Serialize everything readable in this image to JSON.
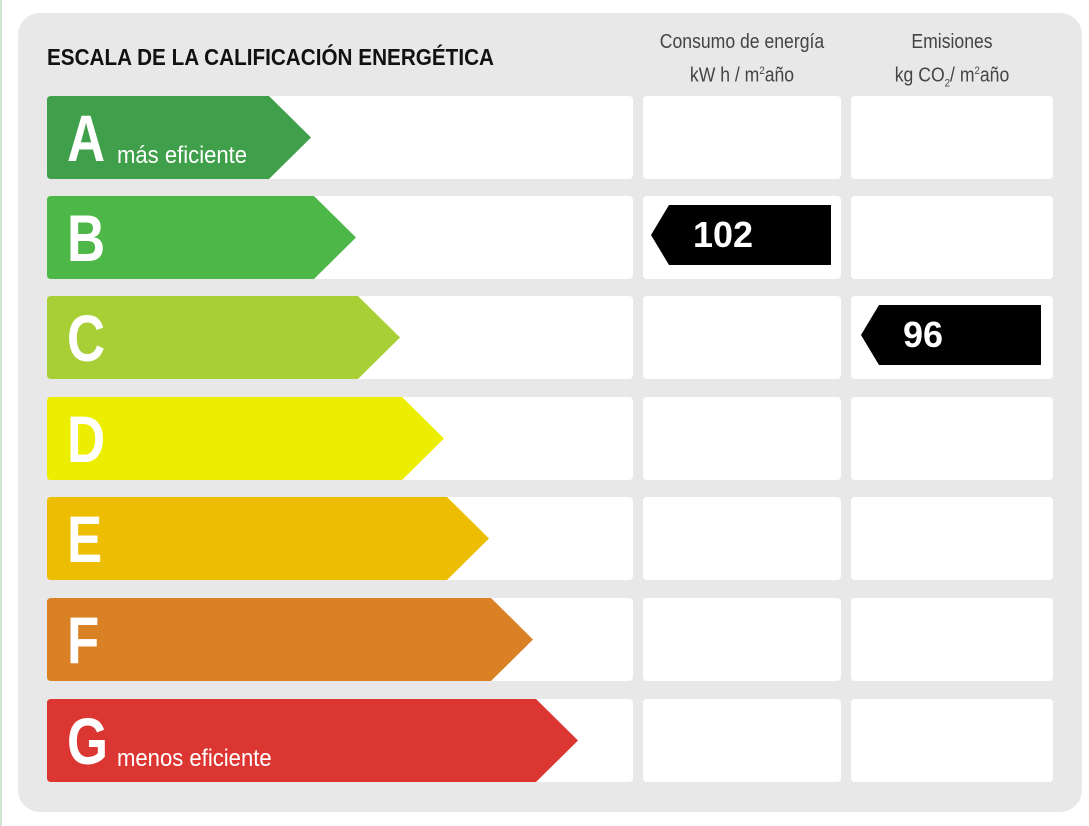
{
  "title": "ESCALA DE LA CALIFICACIÓN ENERGÉTICA",
  "columns": {
    "consumo": {
      "line1": "Consumo de energía",
      "unit_pre": "kW h / m",
      "unit_sup": "2",
      "unit_post": "año"
    },
    "emisiones": {
      "line1": "Emisiones",
      "unit_pre": "kg CO",
      "unit_sub": "2",
      "unit_mid": "/ m",
      "unit_sup": "2",
      "unit_post": "año"
    }
  },
  "ratings": [
    {
      "letter": "A",
      "label": "más eficiente",
      "color": "#3f9f4b"
    },
    {
      "letter": "B",
      "label": "",
      "color": "#4db848"
    },
    {
      "letter": "C",
      "label": "",
      "color": "#a8cf35"
    },
    {
      "letter": "D",
      "label": "",
      "color": "#eded00"
    },
    {
      "letter": "E",
      "label": "",
      "color": "#ecbd00"
    },
    {
      "letter": "F",
      "label": "",
      "color": "#da8125"
    },
    {
      "letter": "G",
      "label": "menos eficiente",
      "color": "#dc3632"
    }
  ],
  "values": {
    "consumo": {
      "value": "102",
      "rating": "B"
    },
    "emisiones": {
      "value": "96",
      "rating": "C"
    }
  }
}
